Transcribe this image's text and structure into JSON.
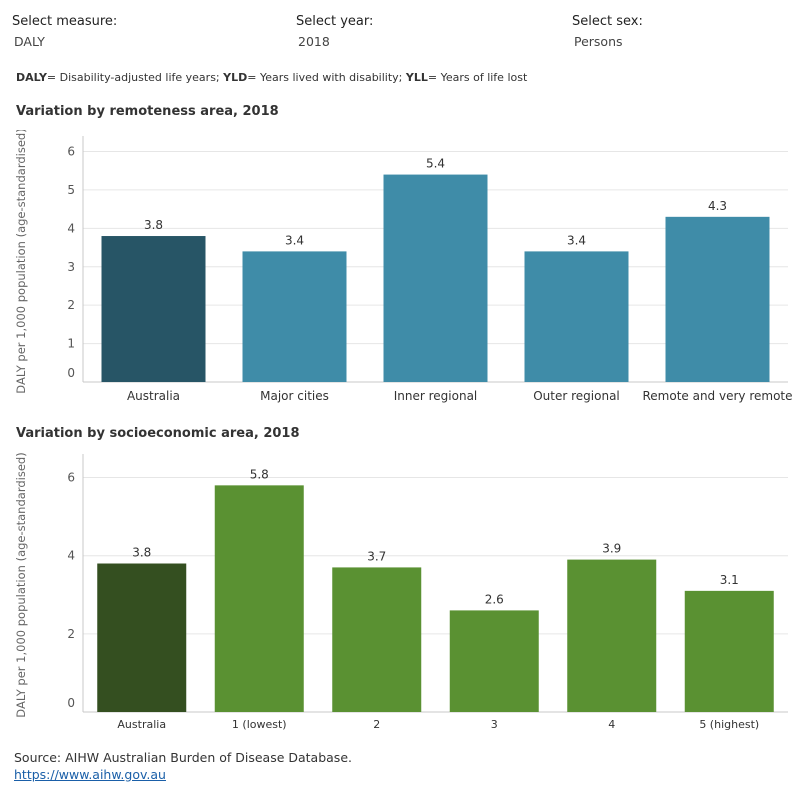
{
  "filters": {
    "measure": {
      "label": "Select measure:",
      "value": "DALY"
    },
    "year": {
      "label": "Select year:",
      "value": "2018"
    },
    "sex": {
      "label": "Select sex:",
      "value": "Persons"
    }
  },
  "legend_note": [
    {
      "abbr": "DALY",
      "text": "= Disability-adjusted life years; "
    },
    {
      "abbr": "YLD",
      "text": "= Years lived with disability; "
    },
    {
      "abbr": "YLL",
      "text": "= Years of life lost"
    }
  ],
  "colors": {
    "remoteness_australia": "#275566",
    "remoteness_area": "#3f8ca8",
    "socio_australia": "#344f20",
    "socio_area": "#5a9132"
  },
  "chart_data": [
    {
      "type": "bar",
      "title": "Variation by remoteness area, 2018",
      "ylabel": "DALY per 1,000 population (age-standardised)",
      "xlabel": "",
      "categories": [
        "Australia",
        "Major cities",
        "Inner regional",
        "Outer regional",
        "Remote and very remote"
      ],
      "values": [
        3.8,
        3.4,
        5.4,
        3.4,
        4.3
      ],
      "data_labels": [
        "3.8",
        "3.4",
        "5.4",
        "3.4",
        "4.3"
      ],
      "ylim": [
        0,
        6.3
      ],
      "yticks": [
        0,
        1,
        2,
        3,
        4,
        5,
        6
      ],
      "grid": true
    },
    {
      "type": "bar",
      "title": "Variation by socioeconomic area, 2018",
      "ylabel": "DALY per 1,000 population (age-standardised)",
      "xlabel": "",
      "categories": [
        "Australia",
        "1 (lowest)",
        "2",
        "3",
        "4",
        "5 (highest)"
      ],
      "values": [
        3.8,
        5.8,
        3.7,
        2.6,
        3.9,
        3.1
      ],
      "data_labels": [
        "3.8",
        "5.8",
        "3.7",
        "2.6",
        "3.9",
        "3.1"
      ],
      "ylim": [
        0,
        6.5
      ],
      "yticks": [
        0,
        2,
        4,
        6
      ],
      "grid": true
    }
  ],
  "source": {
    "text": "Source: AIHW Australian Burden of Disease Database.",
    "link": "https://www.aihw.gov.au"
  }
}
